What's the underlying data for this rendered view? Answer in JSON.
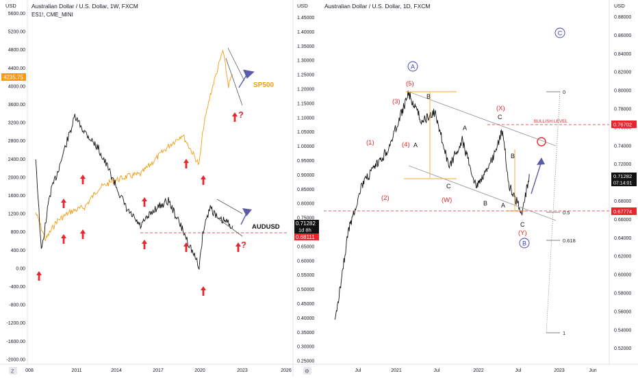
{
  "left_chart": {
    "title": "Australian Dollar / U.S. Dollar, 1W, FXCM",
    "subtitle": "ES1!, CME_MINI",
    "currency_label": "USD",
    "y_ticks_spx": [
      "5600.00",
      "5200.00",
      "4800.00",
      "4400.00",
      "4000.00",
      "3600.00",
      "3200.00",
      "2800.00",
      "2400.00",
      "2000.00",
      "1600.00",
      "1200.00",
      "800.00",
      "400.00",
      "0.00",
      "-400.00",
      "-800.00",
      "-1200.00",
      "-1600.00",
      "-2000.00"
    ],
    "y_ticks_aud": [
      "1.45000",
      "1.40000",
      "1.35000",
      "1.30000",
      "1.25000",
      "1.20000",
      "1.15000",
      "1.10000",
      "1.05000",
      "1.00000",
      "0.95000",
      "0.90000",
      "0.85000",
      "0.80000",
      "0.75000",
      "0.70000",
      "0.65000",
      "0.60000",
      "0.55000",
      "0.50000",
      "0.45000",
      "0.40000",
      "0.35000",
      "0.30000",
      "0.25000"
    ],
    "x_ticks": [
      "008",
      "2011",
      "2014",
      "2017",
      "2020",
      "2023",
      "2026"
    ],
    "spx_price_badge": "4235.75",
    "aud_price_badge": "0.71282",
    "aud_badge_countdown": "1d 8h",
    "aud_level_badge": "0.68111",
    "labels": {
      "sp500": "SP500",
      "audusd": "AUDUSD",
      "q1": "?",
      "q2": "?"
    },
    "colors": {
      "spx": "#f39c12",
      "aud": "#111111",
      "arrow": "#e8262b",
      "projection": "#5b5ba8"
    }
  },
  "right_chart": {
    "title": "Australian Dollar / U.S. Dollar, 1D, FXCM",
    "currency_label": "USD",
    "y_ticks": [
      "0.88000",
      "0.86000",
      "0.84000",
      "0.82000",
      "0.80000",
      "0.78000",
      "0.76000",
      "0.74000",
      "0.72000",
      "0.70000",
      "0.68000",
      "0.66000",
      "0.64000",
      "0.62000",
      "0.60000",
      "0.58000",
      "0.56000",
      "0.54000",
      "0.52000"
    ],
    "x_ticks": [
      "Jul",
      "2021",
      "Jul",
      "2022",
      "Jul",
      "2023",
      "Jun"
    ],
    "price_badge": "0.71282",
    "price_badge_timer": "07:14:01",
    "bullish_badge": "0.76702",
    "bullish_label": "BULLISH LEVEL",
    "support_badge": "0.67774",
    "fib_labels": [
      "0",
      "0.5",
      "0.618",
      "1"
    ],
    "waves": {
      "A_circle": "A",
      "B_circle": "B",
      "C_circle": "C",
      "w1": "(1)",
      "w2": "(2)",
      "w3": "(3)",
      "w4": "(4)",
      "w5": "(5)",
      "W": "(W)",
      "X": "(X)",
      "Y": "(Y)",
      "a1": "A",
      "b1": "B",
      "c1": "C",
      "a2": "A",
      "b2": "B",
      "c2": "C",
      "a3": "A",
      "b3": "B",
      "c3": "C"
    },
    "colors": {
      "price": "#111111",
      "wave": "#e8262b",
      "circle": "#3a3ab8",
      "box": "#f5a623",
      "channel": "#9b9b9b",
      "level": "#e8262b"
    }
  },
  "footer": {
    "compare_badge": "Z",
    "settings_badge": "⚙"
  },
  "chart_data": [
    {
      "type": "line",
      "title": "Australian Dollar / U.S. Dollar, 1W, FXCM",
      "series": [
        {
          "name": "SP500",
          "x": [
            2008.5,
            2009.2,
            2010,
            2011,
            2012,
            2013,
            2014,
            2015,
            2016,
            2017,
            2018,
            2019,
            2020.2,
            2020.5,
            2021,
            2021.9,
            2022.3,
            2022.6
          ],
          "values": [
            1280,
            700,
            1100,
            1300,
            1400,
            1800,
            1950,
            2050,
            2100,
            2400,
            2700,
            2950,
            2300,
            3100,
            3800,
            4750,
            4000,
            4235.75
          ]
        },
        {
          "name": "AUDUSD",
          "x": [
            2008.5,
            2008.9,
            2009.5,
            2010,
            2010.7,
            2011.3,
            2012,
            2013,
            2013.8,
            2015,
            2016,
            2017,
            2018,
            2019,
            2020.2,
            2020.5,
            2021,
            2021.6,
            2022,
            2022.6
          ],
          "values": [
            0.95,
            0.62,
            0.82,
            0.89,
            1.0,
            1.09,
            1.04,
            0.98,
            0.9,
            0.77,
            0.71,
            0.77,
            0.8,
            0.7,
            0.57,
            0.7,
            0.78,
            0.73,
            0.73,
            0.71282
          ]
        }
      ],
      "ylabel": "USD"
    },
    {
      "type": "line",
      "title": "Australian Dollar / U.S. Dollar, 1D, FXCM",
      "series": [
        {
          "name": "AUDUSD",
          "x": [
            "2020-03",
            "2020-05",
            "2020-07",
            "2020-09",
            "2020-11",
            "2021-01",
            "2021-02",
            "2021-04",
            "2021-06",
            "2021-08",
            "2021-10",
            "2021-12",
            "2022-02",
            "2022-04",
            "2022-05",
            "2022-07",
            "2022-08"
          ],
          "values": [
            0.55,
            0.65,
            0.7,
            0.72,
            0.74,
            0.78,
            0.8,
            0.77,
            0.78,
            0.72,
            0.75,
            0.7,
            0.72,
            0.76,
            0.7,
            0.67,
            0.71282
          ]
        }
      ],
      "ylabel": "USD",
      "ylim": [
        0.52,
        0.89
      ]
    }
  ]
}
